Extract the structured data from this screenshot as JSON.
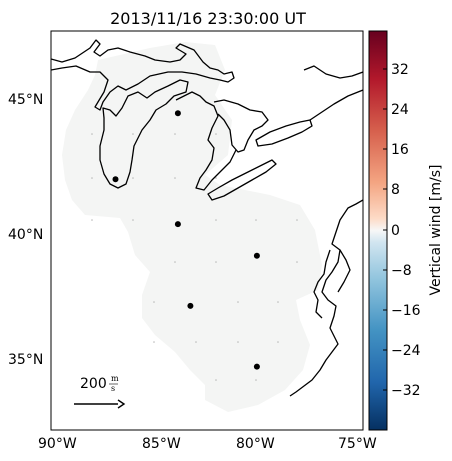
{
  "title": "2013/11/16 23:30:00 UT",
  "lat_labels": [
    "45°N",
    "40°N",
    "35°N"
  ],
  "lon_labels": [
    "90°W",
    "85°W",
    "80°W",
    "75°W"
  ],
  "colorbar": {
    "label": "Vertical wind [m/s]",
    "ticks": [
      "32",
      "24",
      "16",
      "8",
      "0",
      "−8",
      "−16",
      "−24",
      "−32"
    ],
    "colormap": "RdBu_r"
  },
  "scale_arrow": {
    "label_value": "200",
    "label_unit_num": "m",
    "label_unit_den": "s"
  },
  "colors": {
    "coverage_fill": "#f4f5f4",
    "coastline": "#000000",
    "station": "#000000"
  },
  "stations": [
    {
      "lon": -83.9,
      "lat": 44.5
    },
    {
      "lon": -86.9,
      "lat": 42.0
    },
    {
      "lon": -83.9,
      "lat": 40.3
    },
    {
      "lon": -80.1,
      "lat": 39.1
    },
    {
      "lon": -83.3,
      "lat": 37.2
    },
    {
      "lon": -80.1,
      "lat": 34.9
    }
  ]
}
